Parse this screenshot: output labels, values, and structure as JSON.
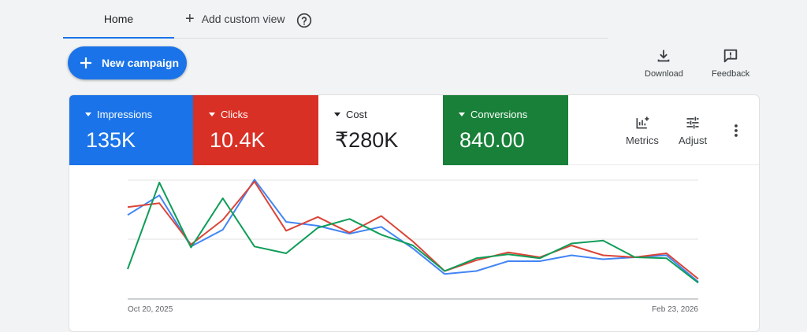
{
  "tabs": {
    "home_label": "Home",
    "add_view_label": "Add custom view"
  },
  "actions": {
    "new_campaign_label": "New campaign",
    "download_label": "Download",
    "feedback_label": "Feedback"
  },
  "scorecards": [
    {
      "label": "Impressions",
      "value": "135K",
      "color": "#1a73e8"
    },
    {
      "label": "Clicks",
      "value": "10.4K",
      "color": "#d93025"
    },
    {
      "label": "Cost",
      "value": "₹280K",
      "color": "#ffffff"
    },
    {
      "label": "Conversions",
      "value": "840.00",
      "color": "#188038"
    }
  ],
  "card_tools": {
    "metrics_label": "Metrics",
    "adjust_label": "Adjust"
  },
  "chart_data": {
    "type": "line",
    "x_start_label": "Oct 20, 2025",
    "x_end_label": "Feb 23, 2026",
    "grid": true,
    "series": [
      {
        "color": "#4285f4",
        "values": [
          55,
          75,
          23,
          40,
          91,
          48,
          44,
          36,
          43,
          21,
          -5,
          -2,
          8,
          8,
          14,
          10,
          12,
          14,
          -13
        ]
      },
      {
        "color": "#db4437",
        "values": [
          63,
          67,
          25,
          50,
          89,
          39,
          53,
          37,
          54,
          28,
          -2,
          9,
          17,
          12,
          24,
          14,
          12,
          16,
          -10
        ]
      },
      {
        "color": "#0f9d58",
        "values": [
          0,
          88,
          22,
          72,
          23,
          16,
          42,
          51,
          35,
          24,
          -2,
          11,
          15,
          11,
          26,
          29,
          12,
          11,
          -14
        ]
      }
    ]
  }
}
